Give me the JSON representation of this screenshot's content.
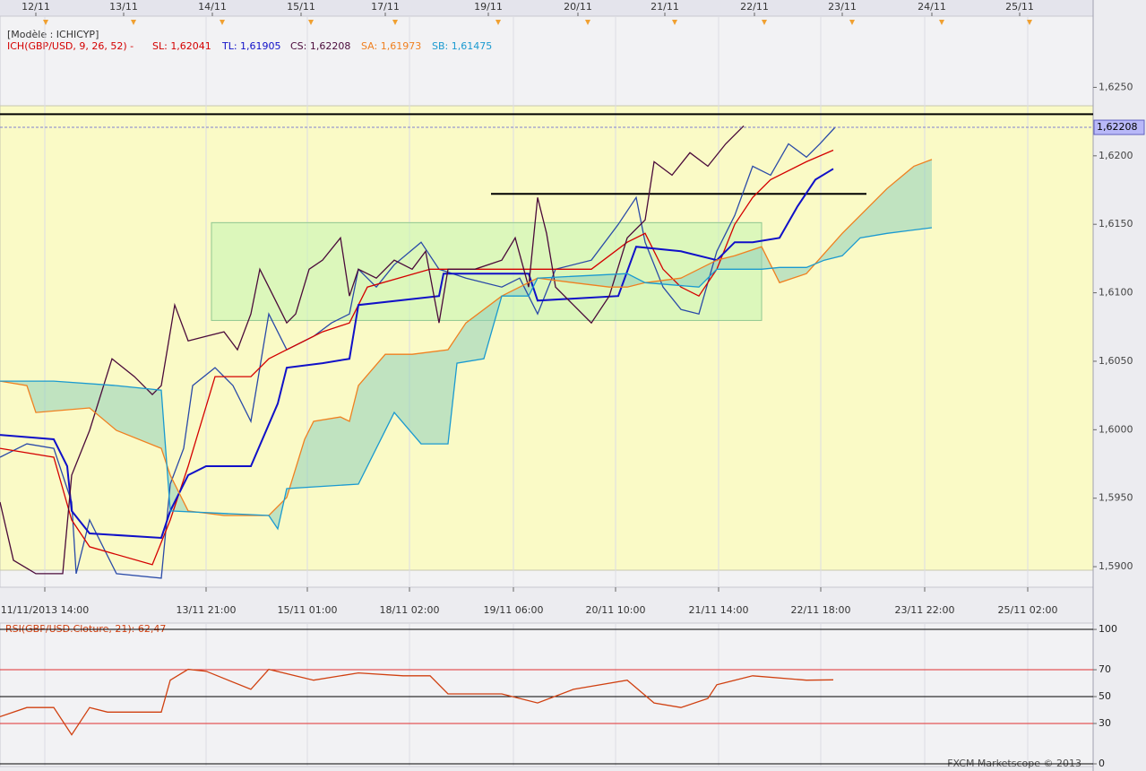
{
  "header": {
    "model": "[Modèle : ICHICYP]",
    "indicator": "ICH(GBP/USD, 9, 26, 52) -",
    "footer": "FXCM Marketscope © 2013"
  },
  "chart_data": [
    {
      "type": "line",
      "xlim": [
        0,
        610
      ],
      "ylim": [
        1.5885,
        1.6302
      ],
      "yticks": [
        {
          "value": 1.59,
          "label": "1,5900"
        },
        {
          "value": 1.595,
          "label": "1,5950"
        },
        {
          "value": 1.6,
          "label": "1,6000"
        },
        {
          "value": 1.605,
          "label": "1,6050"
        },
        {
          "value": 1.61,
          "label": "1,6100"
        },
        {
          "value": 1.615,
          "label": "1,6150"
        },
        {
          "value": 1.62,
          "label": "1,6200"
        },
        {
          "value": 1.625,
          "label": "1,6250"
        }
      ],
      "xticks": [
        {
          "value": 25,
          "label": "11/11/2013 14:00"
        },
        {
          "value": 115,
          "label": "13/11 21:00"
        },
        {
          "value": 171.5,
          "label": "15/11 01:00"
        },
        {
          "value": 228.5,
          "label": "18/11 02:00"
        },
        {
          "value": 286.5,
          "label": "19/11 06:00"
        },
        {
          "value": 343.5,
          "label": "20/11 10:00"
        },
        {
          "value": 401,
          "label": "21/11 14:00"
        },
        {
          "value": 458,
          "label": "22/11 18:00"
        },
        {
          "value": 516,
          "label": "23/11 22:00"
        },
        {
          "value": 573.5,
          "label": "25/11 02:00"
        }
      ],
      "x2ticks": [
        {
          "value": 20,
          "label": "12/11"
        },
        {
          "value": 69,
          "label": "13/11"
        },
        {
          "value": 118.5,
          "label": "14/11"
        },
        {
          "value": 168,
          "label": "15/11"
        },
        {
          "value": 215,
          "label": "17/11"
        },
        {
          "value": 272.5,
          "label": "19/11"
        },
        {
          "value": 322.5,
          "label": "20/11"
        },
        {
          "value": 371,
          "label": "21/11"
        },
        {
          "value": 421,
          "label": "22/11"
        },
        {
          "value": 470,
          "label": "23/11"
        },
        {
          "value": 520,
          "label": "24/11"
        },
        {
          "value": 569,
          "label": "25/11"
        }
      ],
      "price": {
        "color": "#2a4aa8",
        "x": [
          0,
          15,
          30,
          40,
          42.5,
          50,
          65,
          90,
          95,
          102.5,
          107.5,
          120,
          130,
          140,
          150,
          160,
          175,
          185,
          195,
          200,
          210,
          220,
          235,
          245,
          260,
          280,
          290,
          300,
          310,
          330,
          345,
          355,
          360,
          370,
          380,
          390,
          400,
          410,
          420,
          430,
          440,
          450,
          457.5,
          466
        ],
        "values": [
          1.59799,
          1.59897,
          1.59864,
          1.59472,
          1.58949,
          1.59341,
          1.58949,
          1.58916,
          1.59603,
          1.59864,
          1.60322,
          1.60453,
          1.60322,
          1.60061,
          1.60845,
          1.60584,
          1.60682,
          1.6078,
          1.60845,
          1.61172,
          1.61042,
          1.61205,
          1.61369,
          1.61172,
          1.61107,
          1.61042,
          1.61107,
          1.60845,
          1.61172,
          1.61238,
          1.61499,
          1.61696,
          1.61369,
          1.61042,
          1.60878,
          1.60845,
          1.61303,
          1.61565,
          1.61924,
          1.61859,
          1.62088,
          1.6199,
          1.62088,
          1.62208
        ]
      },
      "series": [
        {
          "name": "SL: 1,62041",
          "color": "#d40000",
          "x": [
            0,
            30,
            40,
            50,
            85,
            95,
            105,
            120,
            140,
            150,
            160,
            180,
            195,
            205,
            240,
            260,
            300,
            330,
            350,
            360,
            370,
            380,
            390,
            400,
            410,
            420,
            430,
            450,
            465
          ],
          "values": [
            1.59864,
            1.59799,
            1.59341,
            1.59145,
            1.59014,
            1.59341,
            1.59734,
            1.60388,
            1.60388,
            1.60518,
            1.60584,
            1.60715,
            1.6078,
            1.61042,
            1.61172,
            1.61172,
            1.61172,
            1.61172,
            1.61369,
            1.61434,
            1.61172,
            1.61042,
            1.60976,
            1.61172,
            1.61499,
            1.61696,
            1.61826,
            1.61957,
            1.62041
          ]
        },
        {
          "name": "TL: 1,61905",
          "color": "#1010c8",
          "x": [
            0,
            30,
            37.5,
            40,
            50,
            90,
            95,
            105,
            115,
            140,
            155,
            160,
            180,
            195,
            200,
            245,
            247.5,
            295,
            300,
            345,
            355,
            380,
            400,
            410,
            420,
            435,
            445,
            455,
            465
          ],
          "values": [
            1.59962,
            1.5993,
            1.59734,
            1.59407,
            1.59243,
            1.5921,
            1.59407,
            1.59668,
            1.59734,
            1.59734,
            1.60191,
            1.60453,
            1.60486,
            1.60518,
            1.60911,
            1.60976,
            1.6114,
            1.6114,
            1.60943,
            1.60976,
            1.61336,
            1.61303,
            1.61238,
            1.61369,
            1.61369,
            1.61401,
            1.6163,
            1.61826,
            1.61905
          ]
        },
        {
          "name": "CS: 1,62208",
          "color": "#4a0a3a",
          "x": [
            0,
            7.5,
            20,
            35,
            40,
            50,
            62.5,
            75,
            85,
            90,
            97.5,
            105,
            115,
            125,
            132.5,
            140,
            145,
            150,
            160,
            165,
            172.5,
            180,
            190,
            195,
            200,
            210,
            220,
            230,
            237.5,
            245,
            250,
            265,
            280,
            287.5,
            295,
            300,
            305,
            310,
            320,
            330,
            340,
            350,
            360,
            365,
            375,
            385,
            395,
            405,
            415
          ],
          "values": [
            1.59472,
            1.59047,
            1.58949,
            1.58949,
            1.59668,
            1.59995,
            1.60518,
            1.60388,
            1.60257,
            1.60322,
            1.60911,
            1.60649,
            1.60682,
            1.60715,
            1.60584,
            1.60845,
            1.61172,
            1.61042,
            1.6078,
            1.60845,
            1.61172,
            1.61238,
            1.61401,
            1.60976,
            1.61172,
            1.61107,
            1.61238,
            1.61172,
            1.61303,
            1.6078,
            1.61172,
            1.61172,
            1.61238,
            1.61401,
            1.61042,
            1.61696,
            1.61434,
            1.61042,
            1.60911,
            1.6078,
            1.60976,
            1.61401,
            1.61532,
            1.61957,
            1.61859,
            1.62023,
            1.61924,
            1.62088,
            1.62219
          ]
        },
        {
          "name": "SA: 1,61973",
          "color": "#f08020",
          "x": [
            0,
            15,
            20,
            50,
            65,
            90,
            95,
            105,
            125,
            150,
            160,
            170,
            175,
            190,
            195,
            200,
            215,
            230,
            250,
            260,
            280,
            300,
            320,
            340,
            350,
            360,
            380,
            400,
            410,
            425,
            435,
            450,
            470,
            480,
            495,
            510,
            520
          ],
          "values": [
            1.60355,
            1.60322,
            1.60126,
            1.60159,
            1.59995,
            1.59864,
            1.59668,
            1.59407,
            1.59374,
            1.59374,
            1.59505,
            1.5993,
            1.60061,
            1.60093,
            1.60061,
            1.60322,
            1.60551,
            1.60551,
            1.60584,
            1.6078,
            1.60976,
            1.61107,
            1.61074,
            1.61042,
            1.61042,
            1.61074,
            1.61107,
            1.61238,
            1.6127,
            1.61336,
            1.61074,
            1.6114,
            1.61434,
            1.61565,
            1.61761,
            1.61924,
            1.61973
          ]
        },
        {
          "name": "SB: 1,61475",
          "color": "#1a9ad0",
          "x": [
            0,
            30,
            65,
            90,
            95,
            150,
            155,
            160,
            200,
            220,
            235,
            250,
            255,
            270,
            280,
            295,
            300,
            350,
            360,
            390,
            400,
            425,
            435,
            450,
            460,
            470,
            480,
            495,
            520
          ],
          "values": [
            1.60355,
            1.60355,
            1.60322,
            1.60289,
            1.59407,
            1.59374,
            1.59276,
            1.5957,
            1.59603,
            1.60126,
            1.59897,
            1.59897,
            1.60486,
            1.60518,
            1.60976,
            1.60976,
            1.61107,
            1.6114,
            1.61074,
            1.61042,
            1.61172,
            1.61172,
            1.61185,
            1.61185,
            1.61238,
            1.6127,
            1.61401,
            1.61434,
            1.61475
          ]
        }
      ],
      "cloud_color": "#8fd0bc",
      "last": {
        "value": 1.62208,
        "label": "1,62208"
      },
      "hlines": [
        {
          "value": 1.62304,
          "x": [
            0,
            610
          ]
        },
        {
          "value": 1.61722,
          "x": [
            274,
            483.5
          ]
        }
      ],
      "box": {
        "x": [
          118,
          425
        ],
        "y": [
          1.60798,
          1.61512
        ]
      }
    },
    {
      "type": "line",
      "title": "RSI(GBP/USD.Cloture, 21): 62,47",
      "xlim": [
        0,
        610
      ],
      "ylim": [
        -2,
        104.7
      ],
      "yticks": [
        0,
        30,
        50,
        70,
        100
      ],
      "tick_colors": [
        "#000000",
        "#e03030",
        "#000000",
        "#e03030",
        "#000000"
      ],
      "series": [
        {
          "color": "#d04010",
          "x": [
            0,
            15,
            30,
            40,
            50,
            60,
            90,
            95,
            105,
            115,
            140,
            150,
            175,
            200,
            225,
            240,
            250,
            280,
            300,
            320,
            350,
            365,
            380,
            395,
            400,
            420,
            450,
            465
          ],
          "values": [
            35.1,
            41.9,
            41.9,
            21.6,
            41.9,
            38.5,
            38.5,
            62.2,
            70.3,
            68.9,
            55.4,
            70.3,
            62.2,
            67.6,
            65.5,
            65.5,
            52,
            52,
            45.3,
            55.4,
            62.2,
            45.3,
            41.9,
            48.6,
            58.8,
            65.5,
            62.2,
            62.47
          ]
        }
      ]
    }
  ]
}
